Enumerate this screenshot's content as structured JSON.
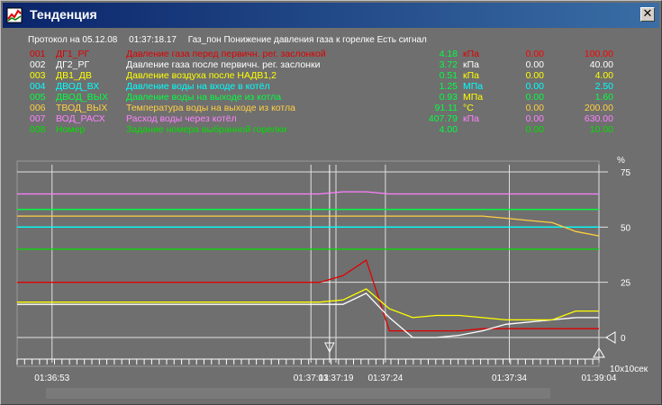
{
  "window": {
    "title": "Тенденция",
    "close_label": "✕"
  },
  "protocol": {
    "label": "Протокол на 05.12.08",
    "time": "01:37:18.17",
    "message": "Газ_пон Понижение давления газа к горелке Есть сигнал"
  },
  "parameters": [
    {
      "num": "001",
      "tag": "ДГ1_РГ",
      "desc": "Давление газа перед первичн. рег. заслонкой",
      "value": "4.18",
      "unit": "кПа",
      "min": "0.00",
      "max": "100.00",
      "color": "#e00000",
      "unit_color": "#e00000",
      "minmax_color": "#ff0000"
    },
    {
      "num": "002",
      "tag": "ДГ2_РГ",
      "desc": "Давление газа после первичн. рег. заслонки",
      "value": "3.72",
      "unit": "кПа",
      "min": "0.00",
      "max": "40.00",
      "color": "#ffffff",
      "unit_color": "#ffffff",
      "minmax_color": "#ffffff"
    },
    {
      "num": "003",
      "tag": "ДВ1_ДВ",
      "desc": "Давление воздуха после НАДВ1,2",
      "value": "0.51",
      "unit": "кПа",
      "min": "0.00",
      "max": "4.00",
      "color": "#ffff00",
      "unit_color": "#ffff00",
      "minmax_color": "#ffff00"
    },
    {
      "num": "004",
      "tag": "ДВОД_ВХ",
      "desc": "Давление воды на входе в котёл",
      "value": "1.25",
      "unit": "МПа",
      "min": "0.00",
      "max": "2.50",
      "color": "#00ffff",
      "unit_color": "#00ffff",
      "minmax_color": "#00ffff"
    },
    {
      "num": "005",
      "tag": "ДВОД_ВЫХ",
      "desc": "Давление воды на выходе из котла",
      "value": "0.93",
      "unit": "МПа",
      "min": "0.00",
      "max": "1.60",
      "color": "#00ff40",
      "unit_color": "#ffff00",
      "minmax_color": "#00ff40"
    },
    {
      "num": "006",
      "tag": "ТВОД_ВЫХ",
      "desc": "Температура воды на выходе из котла",
      "value": "91.11",
      "unit": "°C",
      "min": "0.00",
      "max": "200.00",
      "color": "#ffd040",
      "unit_color": "#ffff00",
      "minmax_color": "#ffd040"
    },
    {
      "num": "007",
      "tag": "ВОД_РАСХ",
      "desc": "Расход  воды через котёл",
      "value": "407.79",
      "unit": "кПа",
      "min": "0.00",
      "max": "630.00",
      "color": "#ff80ff",
      "unit_color": "#ff80ff",
      "minmax_color": "#ff80ff"
    },
    {
      "num": "008",
      "tag": "Номер",
      "desc": "Задание номера выбранной горелки",
      "value": "4.00",
      "unit": "",
      "min": "0.00",
      "max": "10.00",
      "color": "#00e000",
      "unit_color": "#00e000",
      "minmax_color": "#00e000"
    }
  ],
  "value_color": "#00ff40",
  "chart": {
    "y_unit": "%",
    "y_ticks": [
      "75",
      "50",
      "25",
      "0"
    ],
    "x_ticks": [
      "01:36:53",
      "01:37:13",
      "01:37:19",
      "01:37:24",
      "01:37:34",
      "01:39:04"
    ],
    "scale_label": "10x10сек"
  },
  "chart_data": {
    "type": "line",
    "x": [
      0,
      1,
      2,
      3,
      4,
      5,
      6,
      7,
      8,
      9,
      10,
      11,
      12,
      13,
      14,
      15,
      16,
      17,
      18,
      19,
      20,
      21,
      22,
      23,
      24,
      25
    ],
    "ylim": [
      -10,
      80
    ],
    "yticks": [
      0,
      25,
      50,
      75
    ],
    "series": [
      {
        "name": "ДГ1_РГ",
        "color": "#e00000",
        "values": [
          25,
          25,
          25,
          25,
          25,
          25,
          25,
          25,
          25,
          25,
          25,
          25,
          25,
          25,
          28,
          35,
          3,
          3,
          3,
          3,
          4,
          4,
          4,
          4,
          4,
          4
        ]
      },
      {
        "name": "ДГ2_РГ",
        "color": "#ffffff",
        "values": [
          15,
          15,
          15,
          15,
          15,
          15,
          15,
          15,
          15,
          15,
          15,
          15,
          15,
          15,
          15,
          20,
          9,
          0,
          0,
          1,
          3,
          6,
          7,
          8,
          9,
          9
        ]
      },
      {
        "name": "ДВ1_ДВ",
        "color": "#ffff00",
        "values": [
          16,
          16,
          16,
          16,
          16,
          16,
          16,
          16,
          16,
          16,
          16,
          16,
          16,
          16,
          17,
          22,
          13,
          9,
          10,
          10,
          9,
          8,
          8,
          8,
          12,
          12
        ]
      },
      {
        "name": "ДВОД_ВХ",
        "color": "#00ffff",
        "values": [
          50,
          50,
          50,
          50,
          50,
          50,
          50,
          50,
          50,
          50,
          50,
          50,
          50,
          50,
          50,
          50,
          50,
          50,
          50,
          50,
          50,
          50,
          50,
          50,
          50,
          50
        ]
      },
      {
        "name": "ДВОД_ВЫХ",
        "color": "#00ff40",
        "values": [
          58,
          58,
          58,
          58,
          58,
          58,
          58,
          58,
          58,
          58,
          58,
          58,
          58,
          58,
          58,
          58,
          58,
          58,
          58,
          58,
          58,
          58,
          58,
          58,
          58,
          58
        ]
      },
      {
        "name": "ТВОД_ВЫХ",
        "color": "#ffd040",
        "values": [
          55,
          55,
          55,
          55,
          55,
          55,
          55,
          55,
          55,
          55,
          55,
          55,
          55,
          55,
          55,
          55,
          55,
          55,
          55,
          55,
          55,
          54,
          53,
          52,
          48,
          46
        ]
      },
      {
        "name": "ВОД_РАСХ",
        "color": "#ff80ff",
        "values": [
          65,
          65,
          65,
          65,
          65,
          65,
          65,
          65,
          65,
          65,
          65,
          65,
          65,
          65,
          66,
          66,
          65,
          65,
          65,
          65,
          65,
          65,
          65,
          65,
          65,
          65
        ]
      },
      {
        "name": "Номер",
        "color": "#00e000",
        "values": [
          40,
          40,
          40,
          40,
          40,
          40,
          40,
          40,
          40,
          40,
          40,
          40,
          40,
          40,
          40,
          40,
          40,
          40,
          40,
          40,
          40,
          40,
          40,
          40,
          40,
          40
        ]
      }
    ]
  }
}
